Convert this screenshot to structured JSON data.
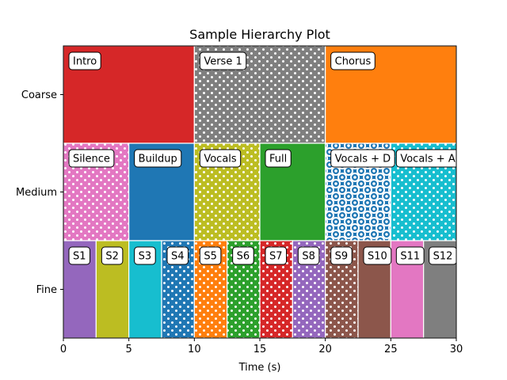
{
  "chart_data": {
    "type": "hierarchy",
    "title": "Sample Hierarchy Plot",
    "xlabel": "Time (s)",
    "ylabel": "",
    "xlim": [
      0,
      30
    ],
    "xticks": [
      "0",
      "5",
      "10",
      "15",
      "20",
      "25",
      "30"
    ],
    "levels": [
      "Coarse",
      "Medium",
      "Fine"
    ],
    "grid": false,
    "segments": {
      "Coarse": [
        {
          "label": "Intro",
          "start": 0,
          "end": 10,
          "color": "#d62728",
          "pattern": "solid"
        },
        {
          "label": "Verse 1",
          "start": 10,
          "end": 20,
          "color": "#7f7f7f",
          "pattern": "dots"
        },
        {
          "label": "Chorus",
          "start": 20,
          "end": 30,
          "color": "#ff7f0e",
          "pattern": "solid"
        }
      ],
      "Medium": [
        {
          "label": "Silence",
          "start": 0,
          "end": 5,
          "color": "#e377c2",
          "pattern": "dots"
        },
        {
          "label": "Buildup",
          "start": 5,
          "end": 10,
          "color": "#1f77b4",
          "pattern": "solid"
        },
        {
          "label": "Vocals",
          "start": 10,
          "end": 15,
          "color": "#bcbd22",
          "pattern": "dots"
        },
        {
          "label": "Full",
          "start": 15,
          "end": 20,
          "color": "#2ca02c",
          "pattern": "solid"
        },
        {
          "label": "Vocals + D",
          "start": 20,
          "end": 25,
          "color": "#1f77b4",
          "pattern": "rings"
        },
        {
          "label": "Vocals + A",
          "start": 25,
          "end": 30,
          "color": "#17becf",
          "pattern": "dots"
        }
      ],
      "Fine": [
        {
          "label": "S1",
          "start": 0,
          "end": 2.5,
          "color": "#9467bd",
          "pattern": "solid"
        },
        {
          "label": "S2",
          "start": 2.5,
          "end": 5,
          "color": "#bcbd22",
          "pattern": "solid"
        },
        {
          "label": "S3",
          "start": 5,
          "end": 7.5,
          "color": "#17becf",
          "pattern": "solid"
        },
        {
          "label": "S4",
          "start": 7.5,
          "end": 10,
          "color": "#1f77b4",
          "pattern": "dots"
        },
        {
          "label": "S5",
          "start": 10,
          "end": 12.5,
          "color": "#ff7f0e",
          "pattern": "dots"
        },
        {
          "label": "S6",
          "start": 12.5,
          "end": 15,
          "color": "#2ca02c",
          "pattern": "dots"
        },
        {
          "label": "S7",
          "start": 15,
          "end": 17.5,
          "color": "#d62728",
          "pattern": "dots"
        },
        {
          "label": "S8",
          "start": 17.5,
          "end": 20,
          "color": "#9467bd",
          "pattern": "dots"
        },
        {
          "label": "S9",
          "start": 20,
          "end": 22.5,
          "color": "#8c564b",
          "pattern": "dots"
        },
        {
          "label": "S10",
          "start": 22.5,
          "end": 25,
          "color": "#8c564b",
          "pattern": "solid"
        },
        {
          "label": "S11",
          "start": 25,
          "end": 27.5,
          "color": "#e377c2",
          "pattern": "solid"
        },
        {
          "label": "S12",
          "start": 27.5,
          "end": 30,
          "color": "#7f7f7f",
          "pattern": "solid"
        }
      ]
    }
  }
}
